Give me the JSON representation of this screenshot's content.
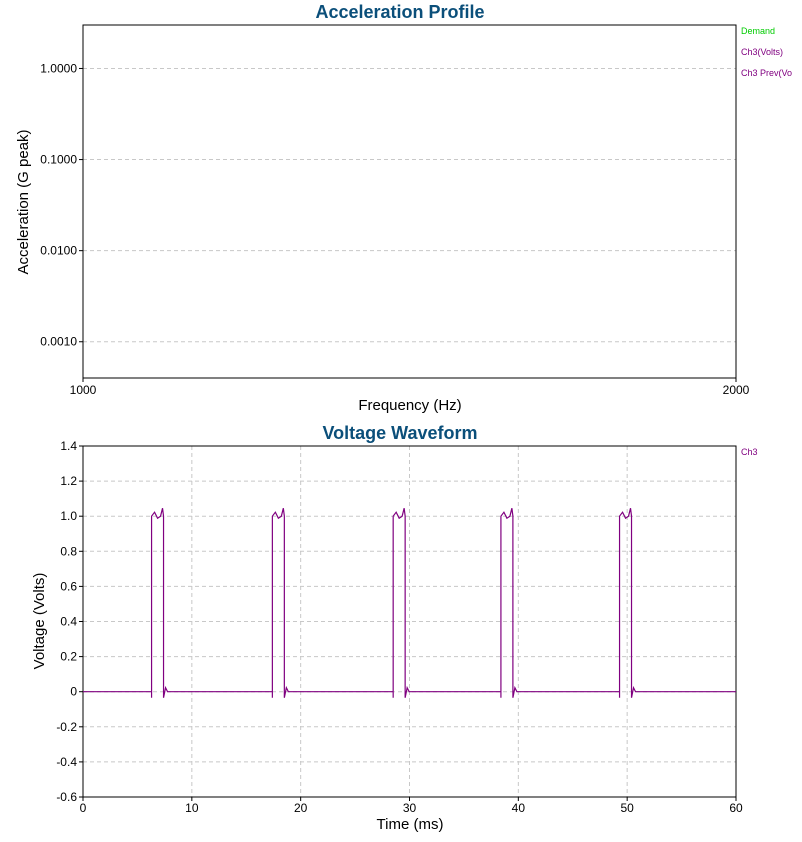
{
  "chart_data": [
    {
      "type": "line",
      "title": "Acceleration Profile",
      "xlabel": "Frequency (Hz)",
      "ylabel": "Acceleration (G peak)",
      "xlim": [
        1000,
        2000
      ],
      "ylim": [
        0.0004,
        3.0
      ],
      "yscale": "log",
      "grid": true,
      "legend_position": "right",
      "x_ticks": [
        "1000",
        "2000"
      ],
      "y_ticks": [
        {
          "label": "1.0000",
          "value": 1.0
        },
        {
          "label": "0.1000",
          "value": 0.1
        },
        {
          "label": "0.0100",
          "value": 0.01
        },
        {
          "label": "0.0010",
          "value": 0.001
        }
      ],
      "series": [
        {
          "name": "Demand",
          "color": "#00cc00",
          "values": []
        },
        {
          "name": "Ch3(Volts)",
          "color": "#800080",
          "values": []
        },
        {
          "name": "Ch3 Prev(Vo",
          "color": "#800080",
          "values": []
        }
      ]
    },
    {
      "type": "line",
      "title": "Voltage Waveform",
      "xlabel": "Time (ms)",
      "ylabel": "Voltage (Volts)",
      "xlim": [
        0,
        60
      ],
      "ylim": [
        -0.6,
        1.4
      ],
      "grid": true,
      "legend_position": "right",
      "x_ticks": [
        "0",
        "10",
        "20",
        "30",
        "40",
        "50",
        "60"
      ],
      "y_ticks": [
        "1.4",
        "1.2",
        "1.0",
        "0.8",
        "0.6",
        "0.4",
        "0.2",
        "0",
        "-0.2",
        "-0.4",
        "-0.6"
      ],
      "series": [
        {
          "name": "Ch3",
          "color": "#800080",
          "pulses": [
            {
              "start": 6.3,
              "end": 7.4,
              "level": 1.0
            },
            {
              "start": 17.4,
              "end": 18.5,
              "level": 1.0
            },
            {
              "start": 28.5,
              "end": 29.6,
              "level": 1.0
            },
            {
              "start": 38.4,
              "end": 39.5,
              "level": 1.0
            },
            {
              "start": 49.3,
              "end": 50.4,
              "level": 1.0
            }
          ],
          "baseline": 0
        }
      ]
    }
  ]
}
